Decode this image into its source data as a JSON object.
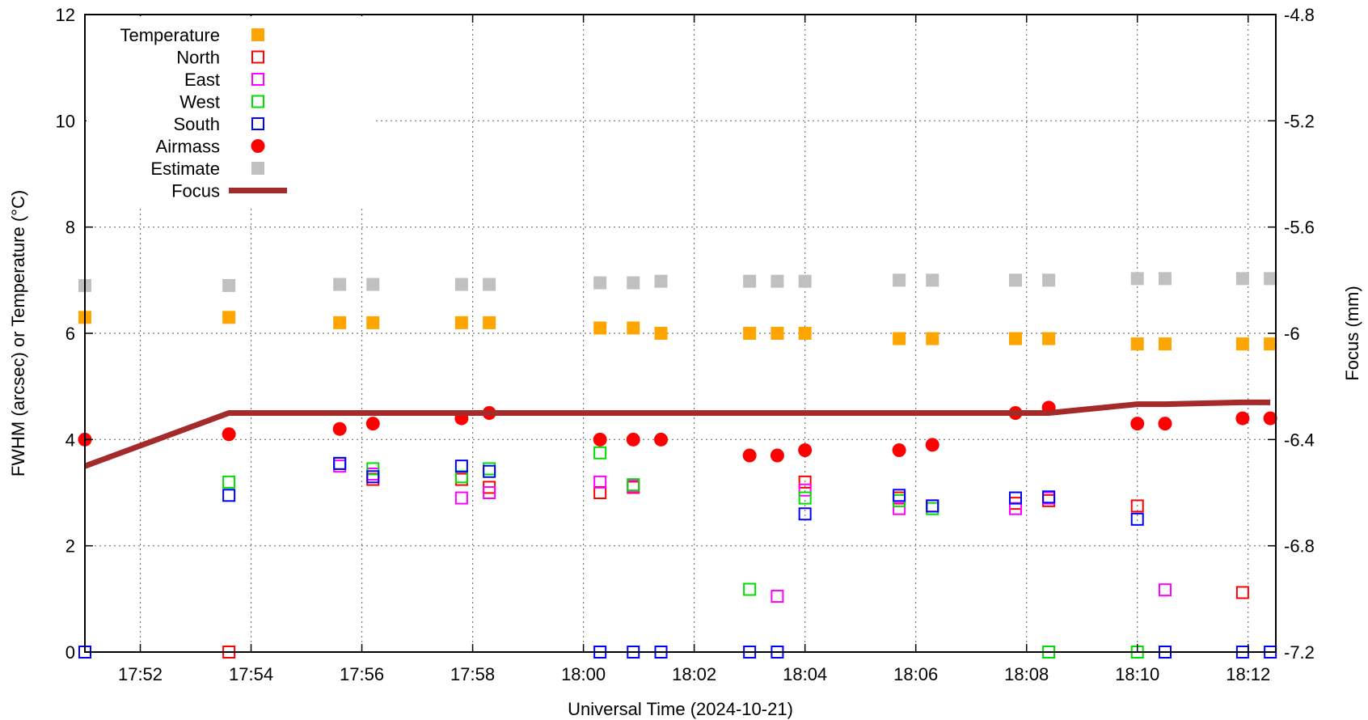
{
  "chart_data": {
    "type": "scatter",
    "xlabel": "Universal Time (2024-10-21)",
    "ylabel": "FWHM (arcsec) or Temperature (°C)",
    "y2label": "Focus (mm)",
    "xlim": [
      "17:51",
      "18:12:30"
    ],
    "ylim": [
      0,
      12
    ],
    "y2lim": [
      -7.2,
      -4.8
    ],
    "x_ticks": [
      "17:52",
      "17:54",
      "17:56",
      "17:58",
      "18:00",
      "18:02",
      "18:04",
      "18:06",
      "18:08",
      "18:10",
      "18:12"
    ],
    "y_ticks": [
      "0",
      "2",
      "4",
      "6",
      "8",
      "10",
      "12"
    ],
    "y2_ticks": [
      "-7.2",
      "-6.8",
      "-6.4",
      "-6",
      "-5.6",
      "-5.2",
      "-4.8"
    ],
    "grid": true,
    "legend_position": "top-left",
    "series": [
      {
        "name": "Temperature",
        "marker": "filled-square",
        "color": "#FFA500",
        "axis": "left",
        "points": [
          [
            "17:51:00",
            6.3
          ],
          [
            "17:53:36",
            6.3
          ],
          [
            "17:55:36",
            6.2
          ],
          [
            "17:56:12",
            6.2
          ],
          [
            "17:57:48",
            6.2
          ],
          [
            "17:58:18",
            6.2
          ],
          [
            "18:00:18",
            6.1
          ],
          [
            "18:00:54",
            6.1
          ],
          [
            "18:01:24",
            6.0
          ],
          [
            "18:03:00",
            6.0
          ],
          [
            "18:03:30",
            6.0
          ],
          [
            "18:04:00",
            6.0
          ],
          [
            "18:05:42",
            5.9
          ],
          [
            "18:06:18",
            5.9
          ],
          [
            "18:07:48",
            5.9
          ],
          [
            "18:08:24",
            5.9
          ],
          [
            "18:10:00",
            5.8
          ],
          [
            "18:10:30",
            5.8
          ],
          [
            "18:11:54",
            5.8
          ],
          [
            "18:12:24",
            5.8
          ]
        ]
      },
      {
        "name": "North",
        "marker": "open-square",
        "color": "#FF0000",
        "axis": "left",
        "points": [
          [
            "17:53:36",
            0.0
          ],
          [
            "17:55:36",
            3.55
          ],
          [
            "17:56:12",
            3.25
          ],
          [
            "17:57:48",
            3.25
          ],
          [
            "17:58:18",
            3.1
          ],
          [
            "18:00:18",
            3.0
          ],
          [
            "18:00:54",
            3.1
          ],
          [
            "18:04:00",
            3.2
          ],
          [
            "18:05:42",
            2.9
          ],
          [
            "18:06:18",
            2.75
          ],
          [
            "18:07:48",
            2.8
          ],
          [
            "18:08:24",
            2.85
          ],
          [
            "18:10:00",
            2.75
          ],
          [
            "18:11:54",
            1.12
          ]
        ]
      },
      {
        "name": "East",
        "marker": "open-square",
        "color": "#FF00FF",
        "axis": "left",
        "points": [
          [
            "17:55:36",
            3.5
          ],
          [
            "17:56:12",
            3.35
          ],
          [
            "17:57:48",
            2.9
          ],
          [
            "17:58:18",
            3.0
          ],
          [
            "18:00:18",
            3.2
          ],
          [
            "18:00:54",
            3.12
          ],
          [
            "18:03:30",
            1.05
          ],
          [
            "18:04:00",
            3.05
          ],
          [
            "18:05:42",
            2.7
          ],
          [
            "18:06:18",
            2.75
          ],
          [
            "18:07:48",
            2.7
          ],
          [
            "18:08:24",
            2.9
          ],
          [
            "18:10:30",
            1.17
          ]
        ]
      },
      {
        "name": "West",
        "marker": "open-square",
        "color": "#00DD00",
        "axis": "left",
        "points": [
          [
            "17:53:36",
            3.2
          ],
          [
            "17:55:36",
            3.55
          ],
          [
            "17:56:12",
            3.45
          ],
          [
            "17:57:48",
            3.3
          ],
          [
            "17:58:18",
            3.45
          ],
          [
            "18:00:18",
            3.75
          ],
          [
            "18:00:54",
            3.15
          ],
          [
            "18:03:00",
            1.18
          ],
          [
            "18:04:00",
            2.9
          ],
          [
            "18:05:42",
            2.85
          ],
          [
            "18:06:18",
            2.7
          ],
          [
            "18:07:48",
            2.9
          ],
          [
            "18:08:24",
            0.0
          ],
          [
            "18:10:00",
            0.0
          ]
        ]
      },
      {
        "name": "South",
        "marker": "open-square",
        "color": "#0000FF",
        "axis": "left",
        "points": [
          [
            "17:51:00",
            0.0
          ],
          [
            "17:53:36",
            2.95
          ],
          [
            "17:55:36",
            3.55
          ],
          [
            "17:56:12",
            3.3
          ],
          [
            "17:57:48",
            3.5
          ],
          [
            "17:58:18",
            3.4
          ],
          [
            "18:00:18",
            0.0
          ],
          [
            "18:00:54",
            0.0
          ],
          [
            "18:01:24",
            0.0
          ],
          [
            "18:03:00",
            0.0
          ],
          [
            "18:03:30",
            0.0
          ],
          [
            "18:04:00",
            2.6
          ],
          [
            "18:05:42",
            2.95
          ],
          [
            "18:06:18",
            2.75
          ],
          [
            "18:07:48",
            2.9
          ],
          [
            "18:08:24",
            2.92
          ],
          [
            "18:10:00",
            2.5
          ],
          [
            "18:10:30",
            0.0
          ],
          [
            "18:11:54",
            0.0
          ],
          [
            "18:12:24",
            0.0
          ]
        ]
      },
      {
        "name": "Airmass",
        "marker": "filled-circle",
        "color": "#FF0000",
        "axis": "left",
        "points": [
          [
            "17:51:00",
            4.0
          ],
          [
            "17:53:36",
            4.1
          ],
          [
            "17:55:36",
            4.2
          ],
          [
            "17:56:12",
            4.3
          ],
          [
            "17:57:48",
            4.4
          ],
          [
            "17:58:18",
            4.5
          ],
          [
            "18:00:18",
            4.0
          ],
          [
            "18:00:54",
            4.0
          ],
          [
            "18:01:24",
            4.0
          ],
          [
            "18:03:00",
            3.7
          ],
          [
            "18:03:30",
            3.7
          ],
          [
            "18:04:00",
            3.8
          ],
          [
            "18:05:42",
            3.8
          ],
          [
            "18:06:18",
            3.9
          ],
          [
            "18:07:48",
            4.5
          ],
          [
            "18:08:24",
            4.6
          ],
          [
            "18:10:00",
            4.3
          ],
          [
            "18:10:30",
            4.3
          ],
          [
            "18:11:54",
            4.4
          ],
          [
            "18:12:24",
            4.4
          ]
        ]
      },
      {
        "name": "Estimate",
        "marker": "filled-square",
        "color": "#C0C0C0",
        "axis": "left",
        "points": [
          [
            "17:51:00",
            6.9
          ],
          [
            "17:53:36",
            6.9
          ],
          [
            "17:55:36",
            6.92
          ],
          [
            "17:56:12",
            6.92
          ],
          [
            "17:57:48",
            6.92
          ],
          [
            "17:58:18",
            6.92
          ],
          [
            "18:00:18",
            6.95
          ],
          [
            "18:00:54",
            6.95
          ],
          [
            "18:01:24",
            6.98
          ],
          [
            "18:03:00",
            6.98
          ],
          [
            "18:03:30",
            6.98
          ],
          [
            "18:04:00",
            6.98
          ],
          [
            "18:05:42",
            7.0
          ],
          [
            "18:06:18",
            7.0
          ],
          [
            "18:07:48",
            7.0
          ],
          [
            "18:08:24",
            7.0
          ],
          [
            "18:10:00",
            7.03
          ],
          [
            "18:10:30",
            7.03
          ],
          [
            "18:11:54",
            7.03
          ],
          [
            "18:12:24",
            7.03
          ]
        ]
      },
      {
        "name": "Focus",
        "marker": "line",
        "color": "#A52A2A",
        "axis": "right",
        "points": [
          [
            "17:51:00",
            -6.5
          ],
          [
            "17:53:36",
            -6.3
          ],
          [
            "18:08:24",
            -6.3
          ],
          [
            "18:10:00",
            -6.267
          ],
          [
            "18:10:30",
            -6.267
          ],
          [
            "18:11:54",
            -6.26
          ],
          [
            "18:12:24",
            -6.26
          ]
        ]
      }
    ]
  }
}
